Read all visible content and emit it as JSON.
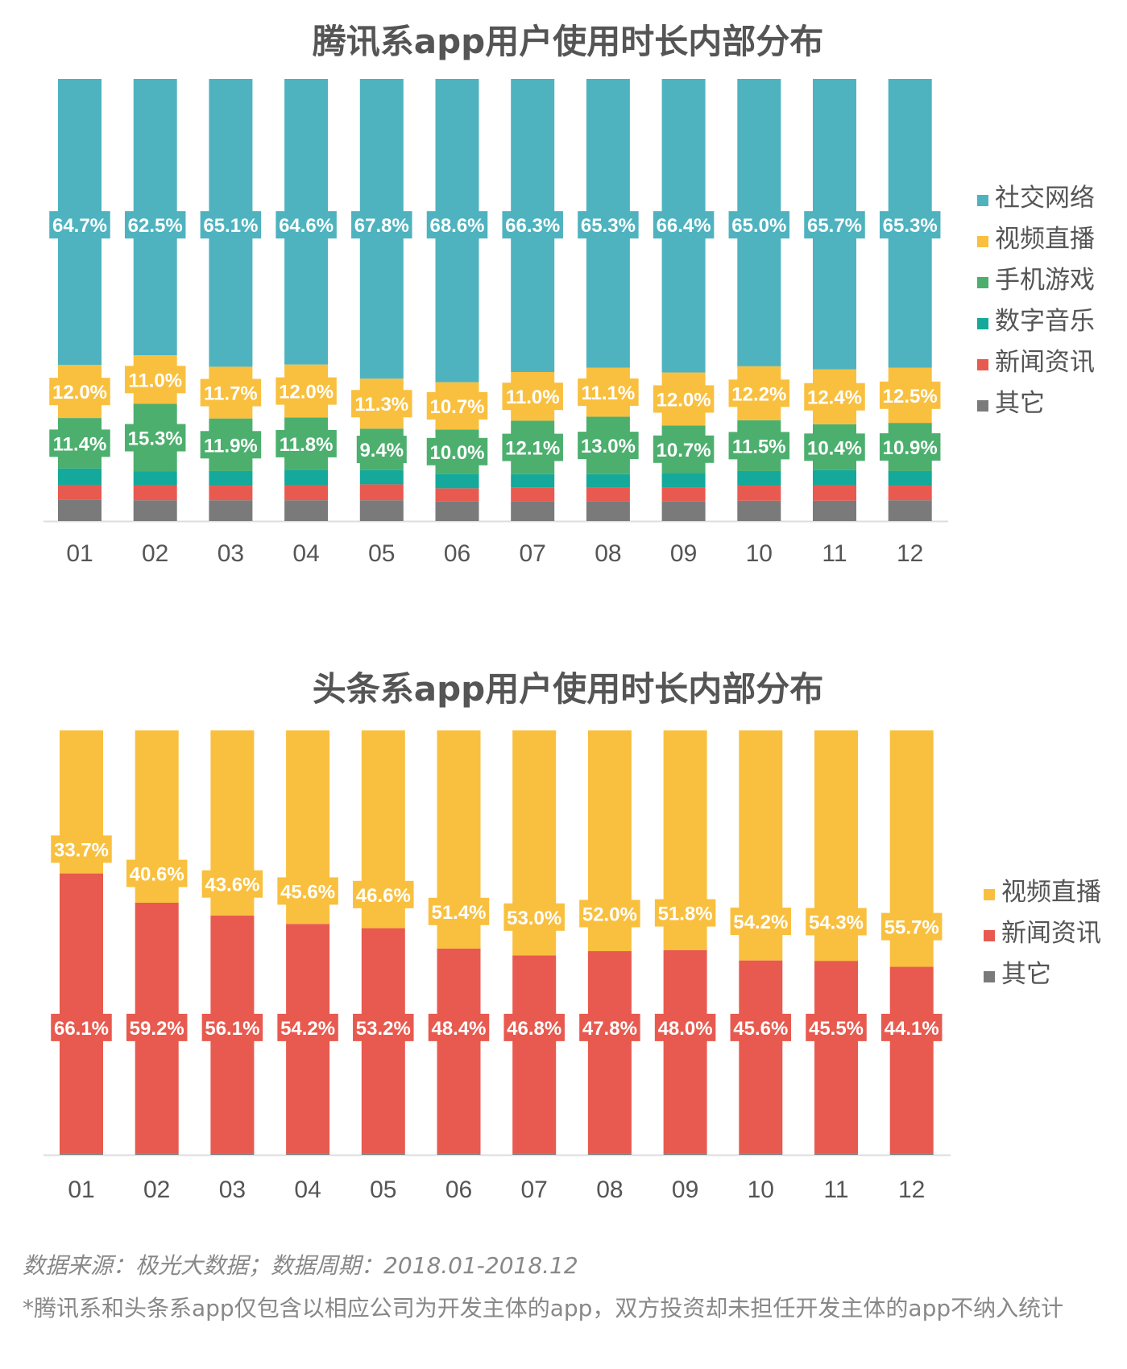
{
  "chart_data": [
    {
      "type": "bar",
      "stacked": true,
      "title": "腾讯系app用户使用时长内部分布",
      "categories": [
        "01",
        "02",
        "03",
        "04",
        "05",
        "06",
        "07",
        "08",
        "09",
        "10",
        "11",
        "12"
      ],
      "ylim": [
        0,
        100
      ],
      "legend_position": "right",
      "series": [
        {
          "name": "社交网络",
          "color": "#4FB3BF",
          "labeled": true,
          "values": [
            64.7,
            62.5,
            65.1,
            64.6,
            67.8,
            68.6,
            66.3,
            65.3,
            66.4,
            65.0,
            65.7,
            65.3
          ]
        },
        {
          "name": "视频直播",
          "color": "#F9C03F",
          "labeled": true,
          "values": [
            12.0,
            11.0,
            11.7,
            12.0,
            11.3,
            10.7,
            11.0,
            11.1,
            12.0,
            12.2,
            12.4,
            12.5
          ]
        },
        {
          "name": "手机游戏",
          "color": "#4CAF6E",
          "labeled": true,
          "values": [
            11.4,
            15.3,
            11.9,
            11.8,
            9.4,
            10.0,
            12.1,
            13.0,
            10.7,
            11.5,
            10.4,
            10.9
          ]
        },
        {
          "name": "数字音乐",
          "color": "#14A99A",
          "labeled": false,
          "values": [
            3.7,
            3.1,
            3.3,
            3.5,
            3.2,
            3.3,
            3.0,
            3.1,
            3.4,
            3.3,
            3.4,
            3.3
          ]
        },
        {
          "name": "新闻资讯",
          "color": "#E85A4F",
          "labeled": false,
          "values": [
            3.4,
            3.4,
            3.3,
            3.4,
            3.6,
            3.0,
            3.1,
            3.0,
            3.1,
            3.4,
            3.5,
            3.3
          ]
        },
        {
          "name": "其它",
          "color": "#7A7A7A",
          "labeled": false,
          "values": [
            4.8,
            4.7,
            4.7,
            4.7,
            4.7,
            4.4,
            4.5,
            4.5,
            4.4,
            4.6,
            4.6,
            4.7
          ]
        }
      ]
    },
    {
      "type": "bar",
      "stacked": true,
      "title": "头条系app用户使用时长内部分布",
      "categories": [
        "01",
        "02",
        "03",
        "04",
        "05",
        "06",
        "07",
        "08",
        "09",
        "10",
        "11",
        "12"
      ],
      "ylim": [
        0,
        100
      ],
      "legend_position": "right",
      "series": [
        {
          "name": "视频直播",
          "color": "#F9C03F",
          "labeled": true,
          "values": [
            33.7,
            40.6,
            43.6,
            45.6,
            46.6,
            51.4,
            53.0,
            52.0,
            51.8,
            54.2,
            54.3,
            55.7
          ]
        },
        {
          "name": "新闻资讯",
          "color": "#E85A4F",
          "labeled": true,
          "values": [
            66.1,
            59.2,
            56.1,
            54.2,
            53.2,
            48.4,
            46.8,
            47.8,
            48.0,
            45.6,
            45.5,
            44.1
          ]
        },
        {
          "name": "其它",
          "color": "#7A7A7A",
          "labeled": false,
          "values": [
            0.2,
            0.2,
            0.3,
            0.2,
            0.2,
            0.2,
            0.2,
            0.2,
            0.2,
            0.2,
            0.2,
            0.2
          ]
        }
      ]
    }
  ],
  "footer": {
    "source": "数据来源：极光大数据；数据周期：2018.01-2018.12",
    "note": "*腾讯系和头条系app仅包含以相应公司为开发主体的app，双方投资却未担任开发主体的app不纳入统计"
  }
}
